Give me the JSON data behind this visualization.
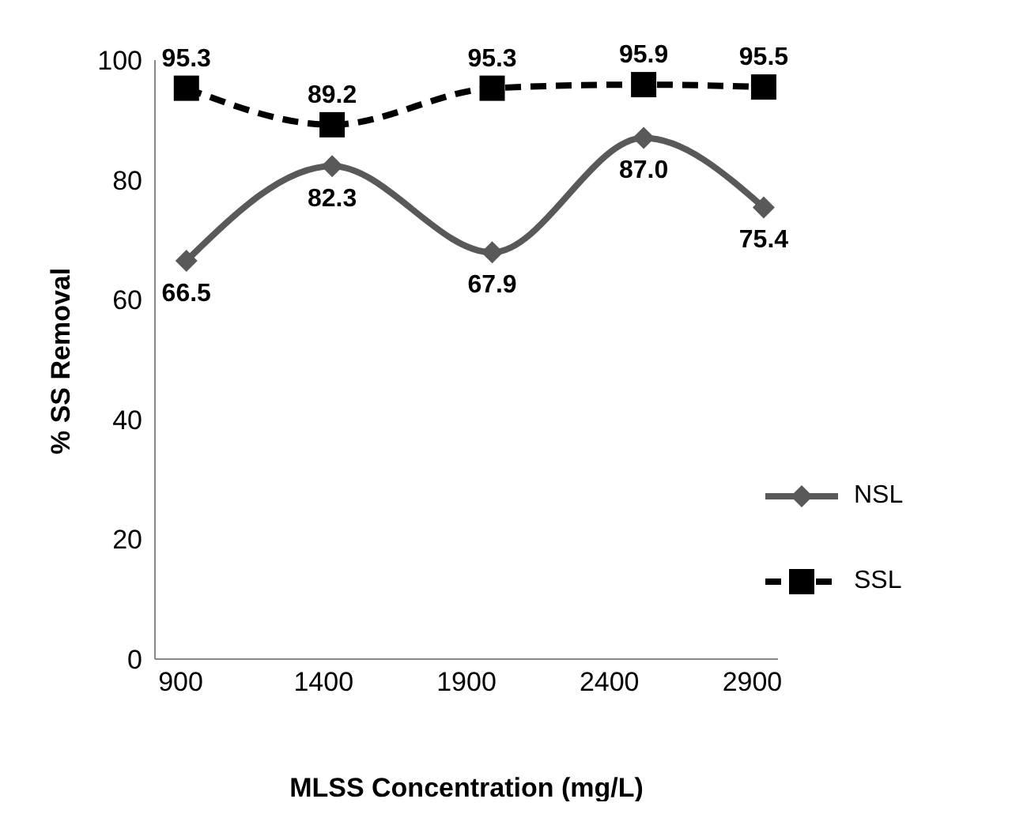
{
  "chart_data": {
    "type": "line",
    "xlabel": "MLSS Concentration (mg/L)",
    "ylabel": "% SS Removal",
    "x": [
      920,
      1430,
      1990,
      2520,
      2940
    ],
    "series": [
      {
        "name": "NSL",
        "color": "#595959",
        "values": [
          66.5,
          82.3,
          67.9,
          87.0,
          75.4
        ],
        "value_labels": [
          "66.5",
          "82.3",
          "67.9",
          "87.0",
          "75.4"
        ],
        "marker": "diamond",
        "line_style": "solid"
      },
      {
        "name": "SSL",
        "color": "#000000",
        "values": [
          95.3,
          89.2,
          95.3,
          95.9,
          95.5
        ],
        "value_labels": [
          "95.3",
          "89.2",
          "95.3",
          "95.9",
          "95.5"
        ],
        "marker": "square",
        "line_style": "dashed"
      }
    ],
    "xlim": [
      810,
      2990
    ],
    "xticks": [
      900,
      1400,
      1900,
      2400,
      2900
    ],
    "ylim": [
      0,
      100
    ],
    "yticks": [
      0,
      20,
      40,
      60,
      80,
      100
    ],
    "grid": false,
    "legend": "bottom right"
  }
}
